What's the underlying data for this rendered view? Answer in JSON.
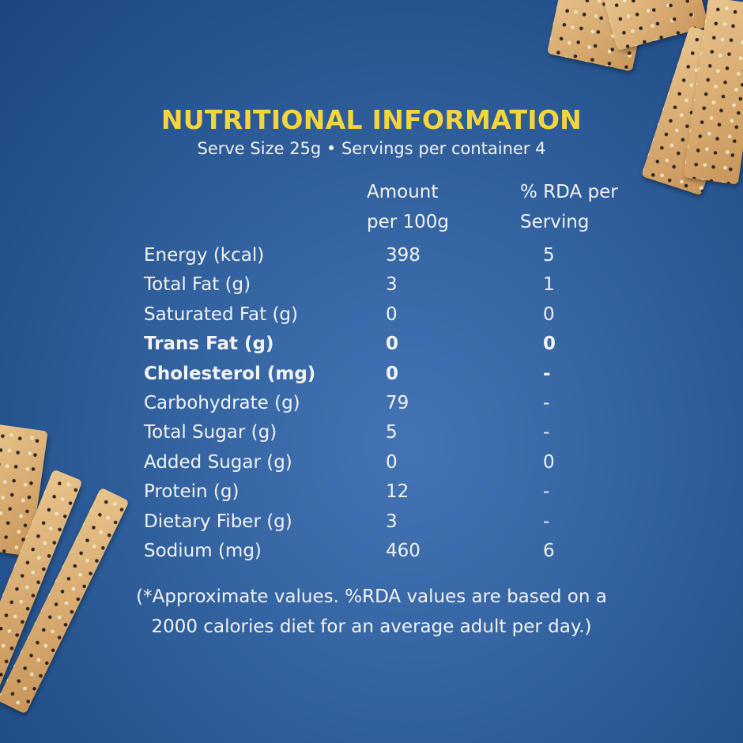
{
  "title": "NUTRITIONAL INFORMATION",
  "subtitle": "Serve Size 25g • Servings per container 4",
  "headers": {
    "amount_line1": "Amount",
    "amount_line2": "per 100g",
    "rda_line1": "% RDA per",
    "rda_line2": "Serving"
  },
  "rows": [
    {
      "nutrient": "Energy (kcal)",
      "amount": "398",
      "rda": "5",
      "bold": false
    },
    {
      "nutrient": "Total Fat (g)",
      "amount": "3",
      "rda": "1",
      "bold": false
    },
    {
      "nutrient": "Saturated Fat (g)",
      "amount": "0",
      "rda": "0",
      "bold": false
    },
    {
      "nutrient": "Trans Fat (g)",
      "amount": "0",
      "rda": "0",
      "bold": true
    },
    {
      "nutrient": "Cholesterol (mg)",
      "amount": "0",
      "rda": "-",
      "bold": true
    },
    {
      "nutrient": "Carbohydrate (g)",
      "amount": "79",
      "rda": "-",
      "bold": false
    },
    {
      "nutrient": "Total Sugar (g)",
      "amount": "5",
      "rda": "-",
      "bold": false
    },
    {
      "nutrient": "Added Sugar (g)",
      "amount": "0",
      "rda": "0",
      "bold": false
    },
    {
      "nutrient": "Protein (g)",
      "amount": "12",
      "rda": "-",
      "bold": false
    },
    {
      "nutrient": "Dietary Fiber (g)",
      "amount": "3",
      "rda": "-",
      "bold": false
    },
    {
      "nutrient": "Sodium (mg)",
      "amount": "460",
      "rda": "6",
      "bold": false
    }
  ],
  "footnote": {
    "line1": "(*Approximate values. %RDA values are based on a",
    "line2": "2000 calories diet for an average adult per day.)"
  },
  "colors": {
    "title": "#f6d43c",
    "background": "#3565a3",
    "text": "#f3f3f3"
  }
}
